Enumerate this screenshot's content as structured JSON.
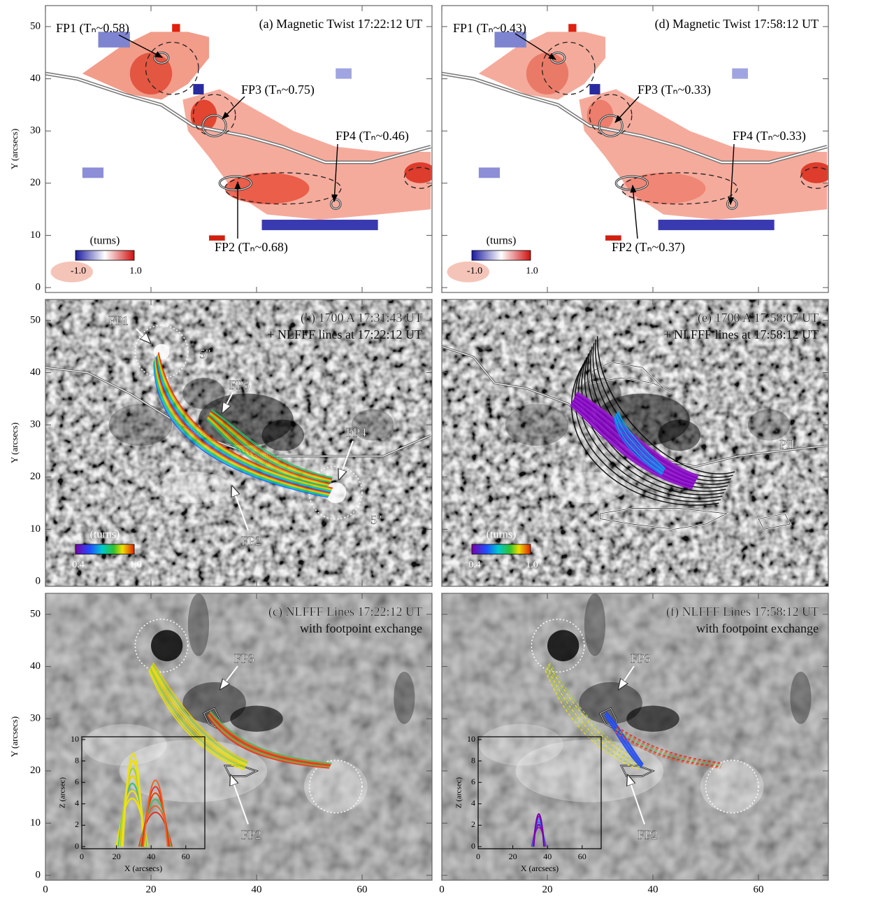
{
  "axes": {
    "y_label": "Y (arcsecs)",
    "yticks": [
      0,
      10,
      20,
      30,
      40,
      50
    ],
    "xticks": [
      0,
      20,
      40,
      60
    ]
  },
  "panels": [
    {
      "title": "(a) Magnetic Twist 17:22:12 UT",
      "labels": [
        "FP1 (Tₙ~0.58)",
        "FP3 (Tₙ~0.75)",
        "FP4 (Tₙ~0.46)",
        "FP2 (Tₙ~0.68)"
      ],
      "colorbar": {
        "label": "(turns)",
        "ticks": [
          "-1.0",
          "1.0"
        ]
      }
    },
    {
      "title": "(b) 1700 A 17:31:43 UT",
      "subtitle": "+ NLFFF lines at 17:22:12 UT",
      "labels": [
        "FP1",
        "FP3",
        "FP4",
        "FP2",
        "5\"",
        "5\""
      ],
      "colorbar": {
        "label": "(turns)",
        "ticks": [
          "0.4",
          "1.0"
        ]
      }
    },
    {
      "title": "(c) NLFFF Lines 17:22:12 UT",
      "subtitle": "with footpoint exchange",
      "labels": [
        "FP3",
        "FP2"
      ],
      "inset": {
        "y_label": "Z (arcsec)",
        "x_label": "X (arcsecs)",
        "yticks": [
          0,
          2,
          4,
          6,
          8,
          10
        ],
        "xticks": [
          0,
          20,
          40,
          60
        ]
      }
    },
    {
      "title": "(d) Magnetic Twist 17:58:12 UT",
      "labels": [
        "FP1 (Tₙ~0.43)",
        "FP3 (Tₙ~0.33)",
        "FP4 (Tₙ~0.33)",
        "FP2 (Tₙ~0.37)"
      ],
      "colorbar": {
        "label": "(turns)",
        "ticks": [
          "-1.0",
          "1.0"
        ]
      }
    },
    {
      "title": "(e) 1700 A 17:58:07 UT",
      "subtitle": "+ NLFFF lines at 17:58:12 UT",
      "labels": [
        "PIL"
      ],
      "colorbar": {
        "label": "(turns)",
        "ticks": [
          "0.4",
          "1.0"
        ]
      }
    },
    {
      "title": "(f) NLFFF Lines 17:58:12 UT",
      "subtitle": "with footpoint exchange",
      "labels": [
        "FP3",
        "FP2"
      ],
      "inset": {
        "y_label": "Z (arcsec)",
        "x_label": "X (arcsecs)",
        "yticks": [
          0,
          2,
          4,
          6,
          8,
          10
        ],
        "xticks": [
          0,
          20,
          40,
          60
        ]
      }
    }
  ]
}
